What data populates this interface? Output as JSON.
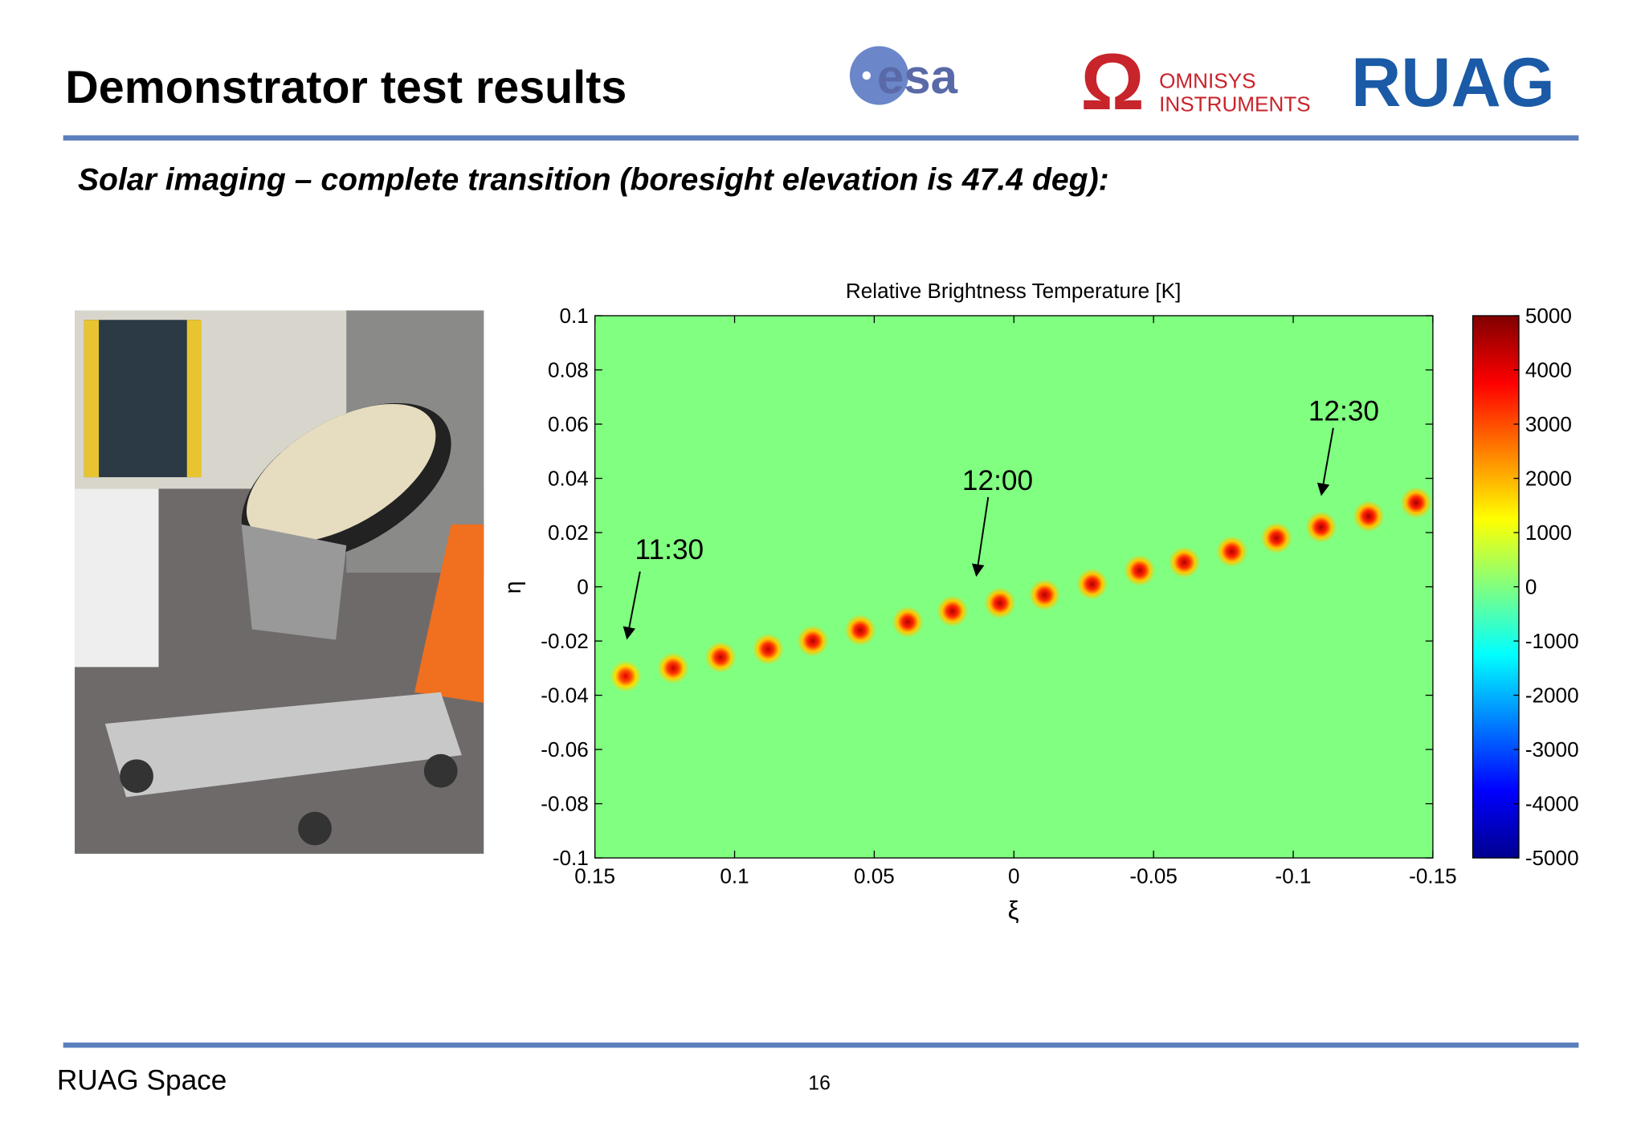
{
  "header": {
    "title": "Demonstrator test results",
    "subtitle": "Solar imaging – complete transition (boresight elevation is 47.4 deg):",
    "logos": [
      "esa",
      "OMNISYS",
      "INSTRUMENTS",
      "RUAG"
    ]
  },
  "chart_data": {
    "type": "heatmap",
    "title": "Relative Brightness Temperature [K]",
    "x_label": "ξ",
    "y_label": "η",
    "x": [
      0.139,
      0.122,
      0.105,
      0.088,
      0.072,
      0.055,
      0.038,
      0.022,
      0.005,
      -0.011,
      -0.028,
      -0.045,
      -0.061,
      -0.078,
      -0.094,
      -0.11,
      -0.127,
      -0.144
    ],
    "y": [
      -0.033,
      -0.03,
      -0.026,
      -0.023,
      -0.02,
      -0.016,
      -0.013,
      -0.009,
      -0.006,
      -0.003,
      0.001,
      0.006,
      0.009,
      0.013,
      0.018,
      0.022,
      0.026,
      0.031
    ],
    "values": [
      4000,
      4300,
      4400,
      4400,
      4500,
      4500,
      4500,
      4500,
      4500,
      4500,
      4500,
      4500,
      4500,
      4500,
      4500,
      4600,
      4600,
      4600
    ],
    "background_value": 0,
    "xlim": [
      0.15,
      -0.15
    ],
    "xticks": [
      0.15,
      0.1,
      0.05,
      0,
      -0.05,
      -0.1,
      -0.15
    ],
    "ylim": [
      -0.1,
      0.1
    ],
    "yticks": [
      -0.1,
      -0.08,
      -0.06,
      -0.04,
      -0.02,
      0,
      0.02,
      0.04,
      0.06,
      0.08,
      0.1
    ],
    "clim": [
      -5000,
      5000
    ],
    "cticks": [
      -5000,
      -4000,
      -3000,
      -2000,
      -1000,
      0,
      1000,
      2000,
      3000,
      4000,
      5000
    ],
    "colormap": "jet",
    "annotations": [
      "11:30",
      "12:00",
      "12:30"
    ]
  },
  "footer": {
    "left": "RUAG Space",
    "page": "16"
  }
}
